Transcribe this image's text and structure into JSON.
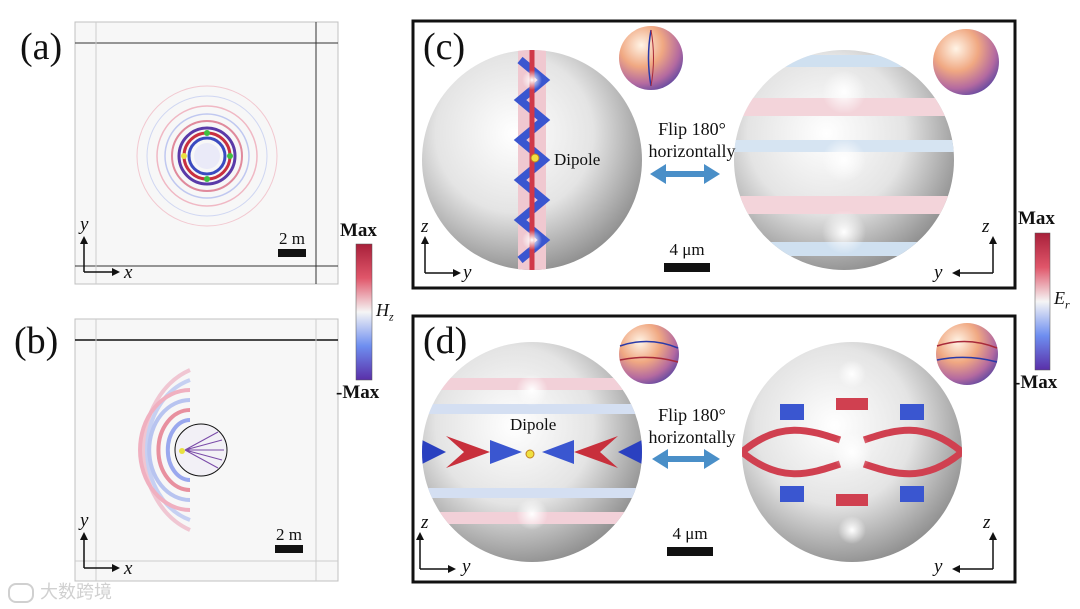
{
  "panels": {
    "a": {
      "label": "(a)",
      "scale": "2 m",
      "axis_x": "x",
      "axis_y": "y"
    },
    "b": {
      "label": "(b)",
      "scale": "2 m",
      "axis_x": "x",
      "axis_y": "y"
    },
    "c": {
      "label": "(c)",
      "scale": "4 μm",
      "dipole": "Dipole",
      "flip_line1": "Flip 180°",
      "flip_line2": "horizontally",
      "left_axis_v": "z",
      "left_axis_h": "y",
      "right_axis_v": "z",
      "right_axis_h": "y"
    },
    "d": {
      "label": "(d)",
      "scale": "4 μm",
      "dipole": "Dipole",
      "flip_line1": "Flip 180°",
      "flip_line2": "horizontally",
      "left_axis_v": "z",
      "left_axis_h": "y",
      "right_axis_v": "z",
      "right_axis_h": "y"
    }
  },
  "colorbar_h": {
    "max": "Max",
    "min": "-Max",
    "var": "H",
    "sub": "z"
  },
  "colorbar_e": {
    "max": "Max",
    "min": "-Max",
    "var": "E",
    "sub": "r"
  },
  "watermark": "大数跨境",
  "colors": {
    "red": "#c8323c",
    "blue": "#3c4bc8",
    "arrow": "#4a8fc8"
  }
}
